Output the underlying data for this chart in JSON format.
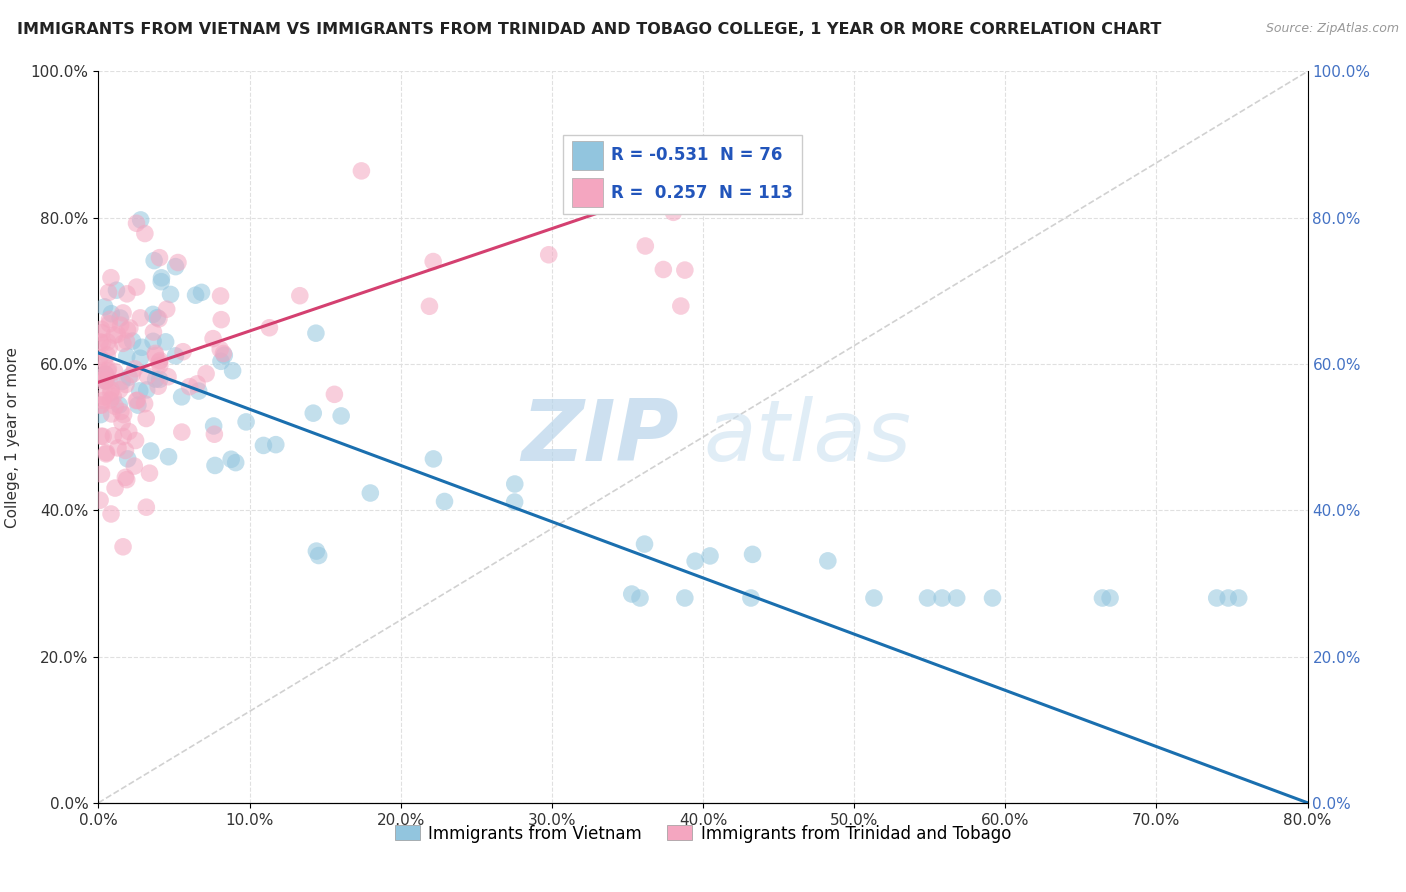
{
  "title": "IMMIGRANTS FROM VIETNAM VS IMMIGRANTS FROM TRINIDAD AND TOBAGO COLLEGE, 1 YEAR OR MORE CORRELATION CHART",
  "source": "Source: ZipAtlas.com",
  "ylabel": "College, 1 year or more",
  "xlim": [
    0.0,
    0.8
  ],
  "ylim": [
    0.0,
    1.0
  ],
  "xtick_vals": [
    0.0,
    0.1,
    0.2,
    0.3,
    0.4,
    0.5,
    0.6,
    0.7,
    0.8
  ],
  "ytick_vals": [
    0.0,
    0.2,
    0.4,
    0.6,
    0.8,
    1.0
  ],
  "blue_color": "#92c5de",
  "pink_color": "#f4a6c0",
  "blue_line_color": "#1a6faf",
  "pink_line_color": "#d44070",
  "diag_line_color": "#cccccc",
  "R_blue": -0.531,
  "N_blue": 76,
  "R_pink": 0.257,
  "N_pink": 113,
  "legend_label_blue": "Immigrants from Vietnam",
  "legend_label_pink": "Immigrants from Trinidad and Tobago",
  "watermark_zip": "ZIP",
  "watermark_atlas": "atlas",
  "background_color": "#ffffff",
  "title_fontsize": 11.5,
  "axis_fontsize": 11,
  "tick_fontsize": 11,
  "blue_line_x0": 0.0,
  "blue_line_y0": 0.615,
  "blue_line_x1": 0.8,
  "blue_line_y1": 0.0,
  "pink_line_x0": 0.0,
  "pink_line_y0": 0.575,
  "pink_line_x1": 0.35,
  "pink_line_y1": 0.82
}
